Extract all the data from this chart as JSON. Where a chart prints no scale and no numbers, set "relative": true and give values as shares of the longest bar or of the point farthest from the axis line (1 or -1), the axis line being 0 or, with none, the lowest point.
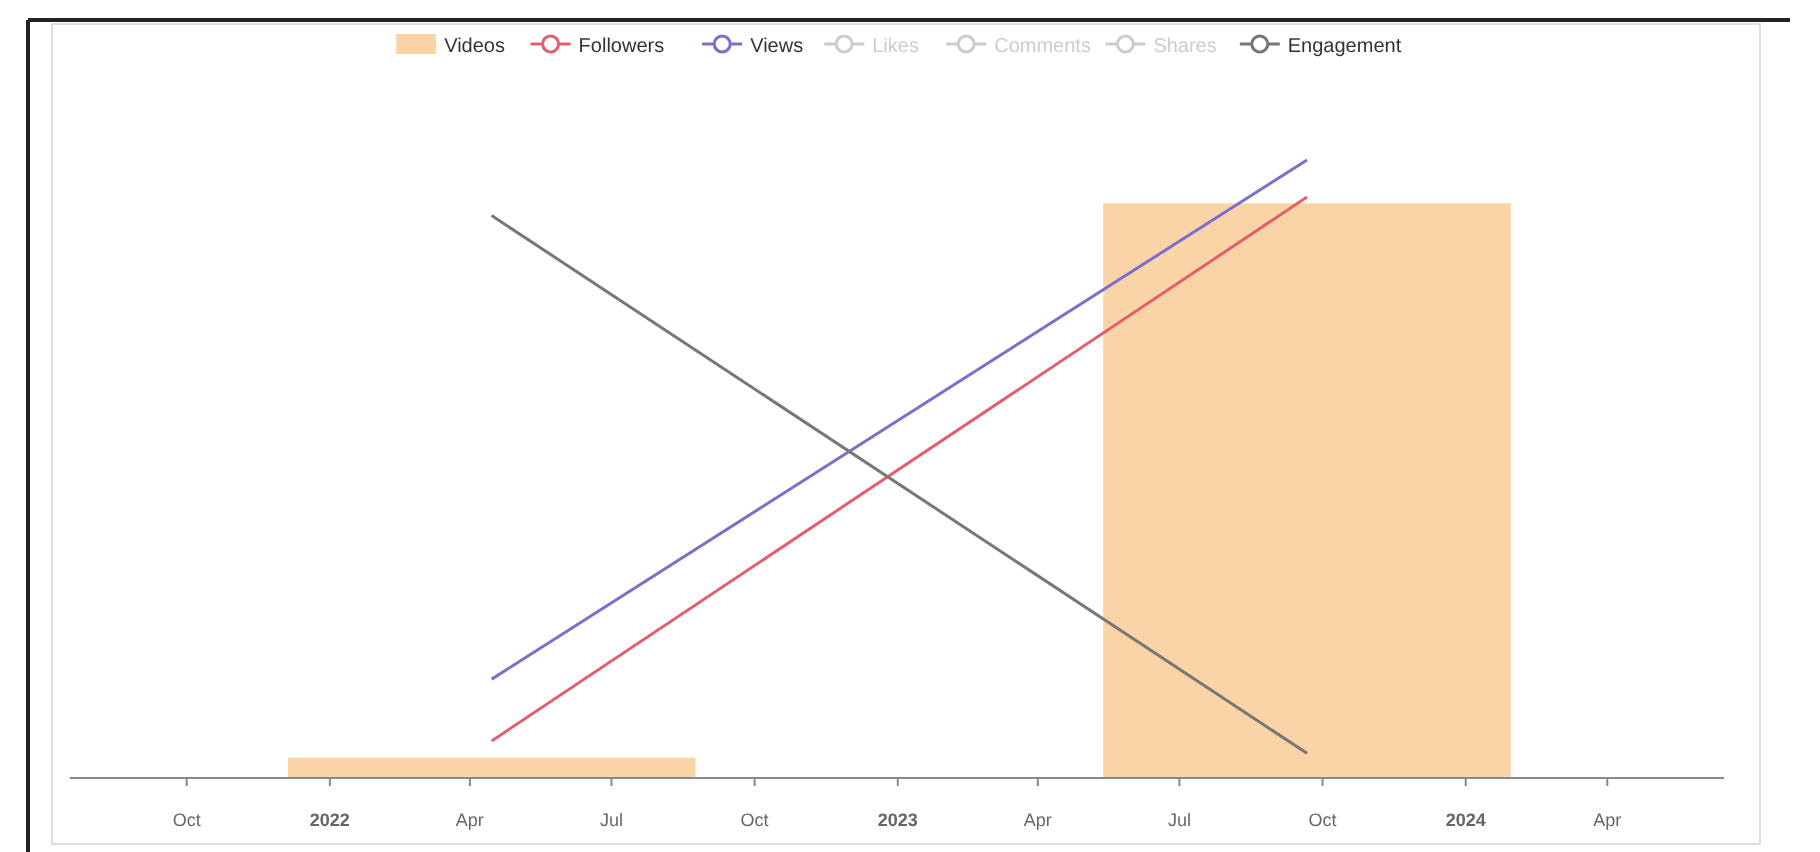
{
  "chart_data": {
    "type": "line",
    "relative": true,
    "x": [
      "2022-04-15",
      "2023-09-21"
    ],
    "xlim": [
      "2021-07-18",
      "2024-06-15"
    ],
    "xticks": [
      {
        "value": "2021-10-01",
        "label": "Oct"
      },
      {
        "value": "2022-01-01",
        "label": "2022"
      },
      {
        "value": "2022-04-01",
        "label": "Apr"
      },
      {
        "value": "2022-07-01",
        "label": "Jul"
      },
      {
        "value": "2022-10-01",
        "label": "Oct"
      },
      {
        "value": "2023-01-01",
        "label": "2023"
      },
      {
        "value": "2023-04-01",
        "label": "Apr"
      },
      {
        "value": "2023-07-01",
        "label": "Jul"
      },
      {
        "value": "2023-10-01",
        "label": "Oct"
      },
      {
        "value": "2024-01-01",
        "label": "2024"
      },
      {
        "value": "2024-04-01",
        "label": "Apr"
      }
    ],
    "legend": "top",
    "marker": "none",
    "series": [
      {
        "name": "Videos",
        "type": "bar",
        "color": "#f9d4a6",
        "values": [
          0.033,
          0.93
        ]
      },
      {
        "name": "Followers",
        "color": "#e0606e",
        "values": [
          0.06,
          0.94
        ]
      },
      {
        "name": "Views",
        "color": "#7b6fca",
        "values": [
          0.16,
          1
        ]
      },
      {
        "name": "Likes",
        "color": "#cccccc",
        "values": [
          null,
          null
        ]
      },
      {
        "name": "Comments",
        "color": "#cccccc",
        "values": [
          null,
          null
        ]
      },
      {
        "name": "Shares",
        "color": "#cccccc",
        "values": [
          null,
          null
        ]
      },
      {
        "name": "Engagement",
        "color": "#777777",
        "values": [
          0.91,
          0.04
        ]
      }
    ]
  }
}
